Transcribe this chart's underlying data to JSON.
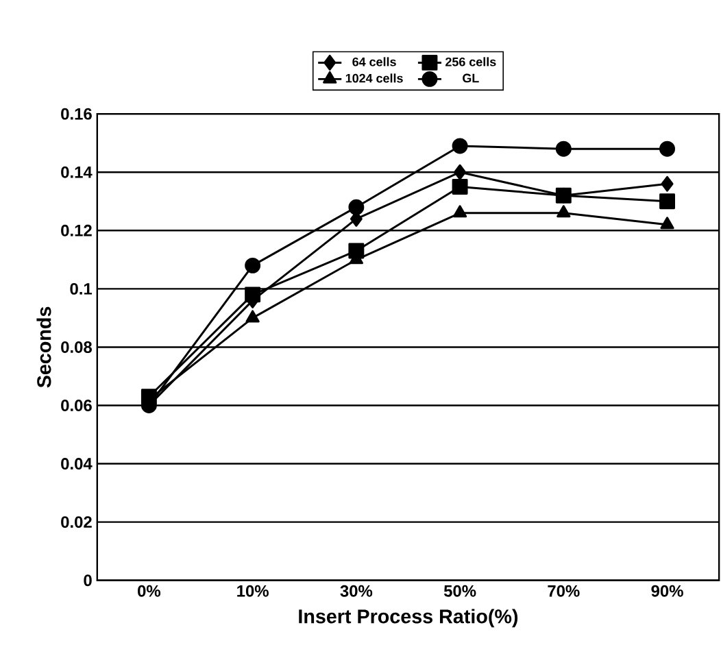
{
  "chart_data": {
    "type": "line",
    "xlabel": "Insert Process Ratio(%)",
    "ylabel": "Seconds",
    "categories": [
      "0%",
      "10%",
      "30%",
      "50%",
      "70%",
      "90%"
    ],
    "series": [
      {
        "name": "64 cells",
        "color": "#000000",
        "marker": "diamond",
        "values": [
          0.06,
          0.096,
          0.124,
          0.14,
          0.132,
          0.136
        ]
      },
      {
        "name": "256 cells",
        "color": "#000000",
        "marker": "square",
        "values": [
          0.063,
          0.098,
          0.113,
          0.135,
          0.132,
          0.13
        ]
      },
      {
        "name": "1024 cells",
        "color": "#000000",
        "marker": "triangle",
        "values": [
          0.062,
          0.09,
          0.11,
          0.126,
          0.126,
          0.122
        ]
      },
      {
        "name": "GL",
        "color": "#000000",
        "marker": "circle",
        "values": [
          0.06,
          0.108,
          0.128,
          0.149,
          0.148,
          0.148
        ]
      }
    ],
    "ylim": [
      0,
      0.16
    ],
    "yticks": [
      0,
      0.02,
      0.04,
      0.06,
      0.08,
      0.1,
      0.12,
      0.14,
      0.16
    ],
    "grid": "y",
    "legend": "top"
  }
}
